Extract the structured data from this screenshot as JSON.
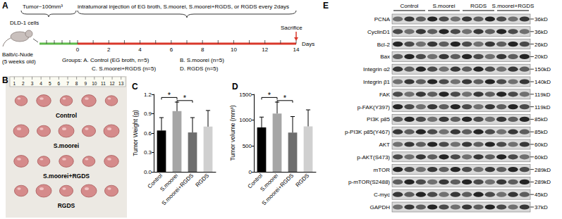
{
  "panel_a": {
    "title": "A",
    "tumor_note": "Tumor~100mm³",
    "treatment": "intratumoral injection of EG broth, S.moorei, S.moorei+RGDS, or RGDS every 2days",
    "cells": "DLD-1 cells",
    "mouse": [
      "Balb/c-Nude",
      "(5 weeks old)"
    ],
    "end": "Sacrifice",
    "days_label": "Days",
    "days": [
      0,
      2,
      4,
      6,
      8,
      10,
      12,
      14
    ],
    "groups": [
      "Groups: A. Control (EG broth, n=5)",
      "B. S.moorei (n=5)",
      "C. S.moorei+RGDS (n=5)",
      "D. RGDS (n=5)"
    ]
  },
  "panel_b": {
    "title": "B",
    "ruler": [
      1,
      2,
      3,
      4,
      5,
      6,
      7,
      8,
      9,
      10,
      11,
      12,
      13
    ],
    "rows": [
      "Control",
      "S.moorei",
      "S.moorei+RGDS",
      "RGDS"
    ]
  },
  "chart_data": [
    {
      "type": "bar",
      "title": "C",
      "y_label": "Tumor Weight (g)",
      "categories": [
        "Control",
        "S.moorei",
        "S.moorei+RGDS",
        "RGDS"
      ],
      "values": [
        0.64,
        0.94,
        0.61,
        0.7
      ],
      "errors": [
        0.2,
        0.14,
        0.23,
        0.25
      ],
      "colors": [
        "#000000",
        "#a6a6a6",
        "#6e6e6e",
        "#d0d0d0"
      ],
      "ylim": [
        0,
        1.2
      ],
      "yticks": [
        {
          "value": 0,
          "label": "0.0"
        },
        {
          "value": 0.3,
          "label": "0.3"
        },
        {
          "value": 0.6,
          "label": "0.6"
        },
        {
          "value": 0.9,
          "label": "0.9"
        },
        {
          "value": 1.2,
          "label": "1.2"
        }
      ],
      "annotations": [
        {
          "from": "Control",
          "to": "S.moorei",
          "text": "*"
        },
        {
          "from": "S.moorei",
          "to": "S.moorei+RGDS",
          "text": "*"
        }
      ],
      "grid": false
    },
    {
      "type": "bar",
      "title": "D",
      "y_label": "Tumor volume (mm³)",
      "categories": [
        "Control",
        "S.moorei",
        "S.moorei+RGDS",
        "RGDS"
      ],
      "values": [
        860,
        1130,
        760,
        880
      ],
      "errors": [
        200,
        220,
        310,
        320
      ],
      "colors": [
        "#000000",
        "#a6a6a6",
        "#6e6e6e",
        "#d0d0d0"
      ],
      "ylim": [
        0,
        1500
      ],
      "yticks": [
        0,
        500,
        1000,
        1500
      ],
      "annotations": [
        {
          "from": "Control",
          "to": "S.moorei",
          "text": "*"
        },
        {
          "from": "S.moorei",
          "to": "S.moorei+RGDS",
          "text": "*"
        }
      ],
      "grid": false
    }
  ],
  "panel_e": {
    "title": "E",
    "groups": [
      "Control",
      "S.moorei",
      "RGDS",
      "S.moorei+RGDS"
    ],
    "lanes_per_group": 3,
    "blots": [
      {
        "protein": "PCNA",
        "size": "36kD"
      },
      {
        "protein": "CyclinD1",
        "size": "36kD"
      },
      {
        "protein": "Bcl-2",
        "size": "26kD"
      },
      {
        "protein": "Bax",
        "size": "20kD"
      },
      {
        "protein": "Integrin α2",
        "size": "150kD"
      },
      {
        "protein": "Integrin β1",
        "size": "140kD"
      },
      {
        "protein": "FAK",
        "size": "119kD"
      },
      {
        "protein": "p-FAK(Y397)",
        "size": "119kD"
      },
      {
        "protein": "PI3K p85",
        "size": "85kD"
      },
      {
        "protein": "p-PI3K p85(Y467)",
        "size": "85kD"
      },
      {
        "protein": "AKT",
        "size": "60kD"
      },
      {
        "protein": "p-AKT(S473)",
        "size": "60kD"
      },
      {
        "protein": "mTOR",
        "size": "289kD"
      },
      {
        "protein": "p-mTOR(S2488)",
        "size": "289kD"
      },
      {
        "protein": "C-myc",
        "size": "45kD"
      },
      {
        "protein": "GAPDH",
        "size": "37kD"
      }
    ]
  }
}
